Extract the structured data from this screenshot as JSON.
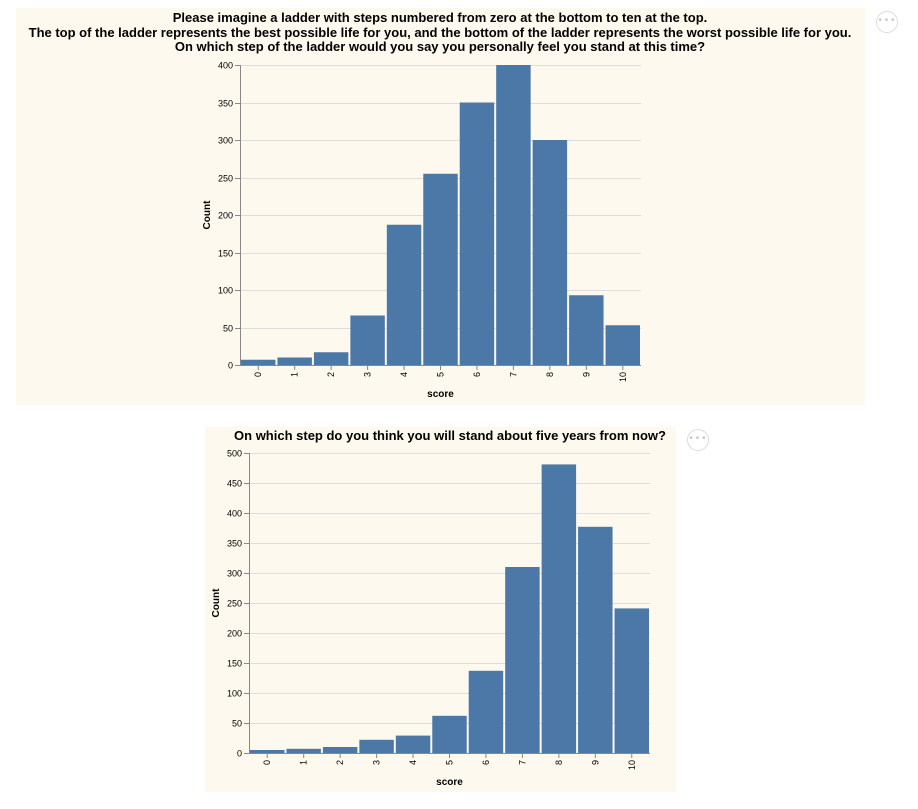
{
  "chart_data": [
    {
      "type": "bar",
      "title": [
        "Please imagine a ladder with steps numbered from zero at the bottom to ten at the top.",
        "The top of the ladder represents the best possible life for you, and the bottom of the ladder represents the worst possible life for you.",
        "On which step of the ladder would you say you personally feel you stand at this time?"
      ],
      "xlabel": "score",
      "ylabel": "Count",
      "categories": [
        "0",
        "1",
        "2",
        "3",
        "4",
        "5",
        "6",
        "7",
        "8",
        "9",
        "10"
      ],
      "values": [
        7,
        10,
        17,
        66,
        187,
        255,
        350,
        400,
        300,
        93,
        53
      ],
      "ylim": [
        0,
        400
      ],
      "yticks": [
        0,
        50,
        100,
        150,
        200,
        250,
        300,
        350,
        400
      ],
      "grid": true,
      "bar_color": "#4c78a8"
    },
    {
      "type": "bar",
      "title": [
        "On which step do you think you will stand about five years from now?"
      ],
      "xlabel": "score",
      "ylabel": "Count",
      "categories": [
        "0",
        "1",
        "2",
        "3",
        "4",
        "5",
        "6",
        "7",
        "8",
        "9",
        "10"
      ],
      "values": [
        5,
        7,
        10,
        22,
        29,
        62,
        137,
        310,
        481,
        377,
        241
      ],
      "ylim": [
        0,
        500
      ],
      "yticks": [
        0,
        50,
        100,
        150,
        200,
        250,
        300,
        350,
        400,
        450,
        500
      ],
      "grid": true,
      "bar_color": "#4c78a8"
    }
  ],
  "menu_button": {
    "glyph": "•••"
  }
}
